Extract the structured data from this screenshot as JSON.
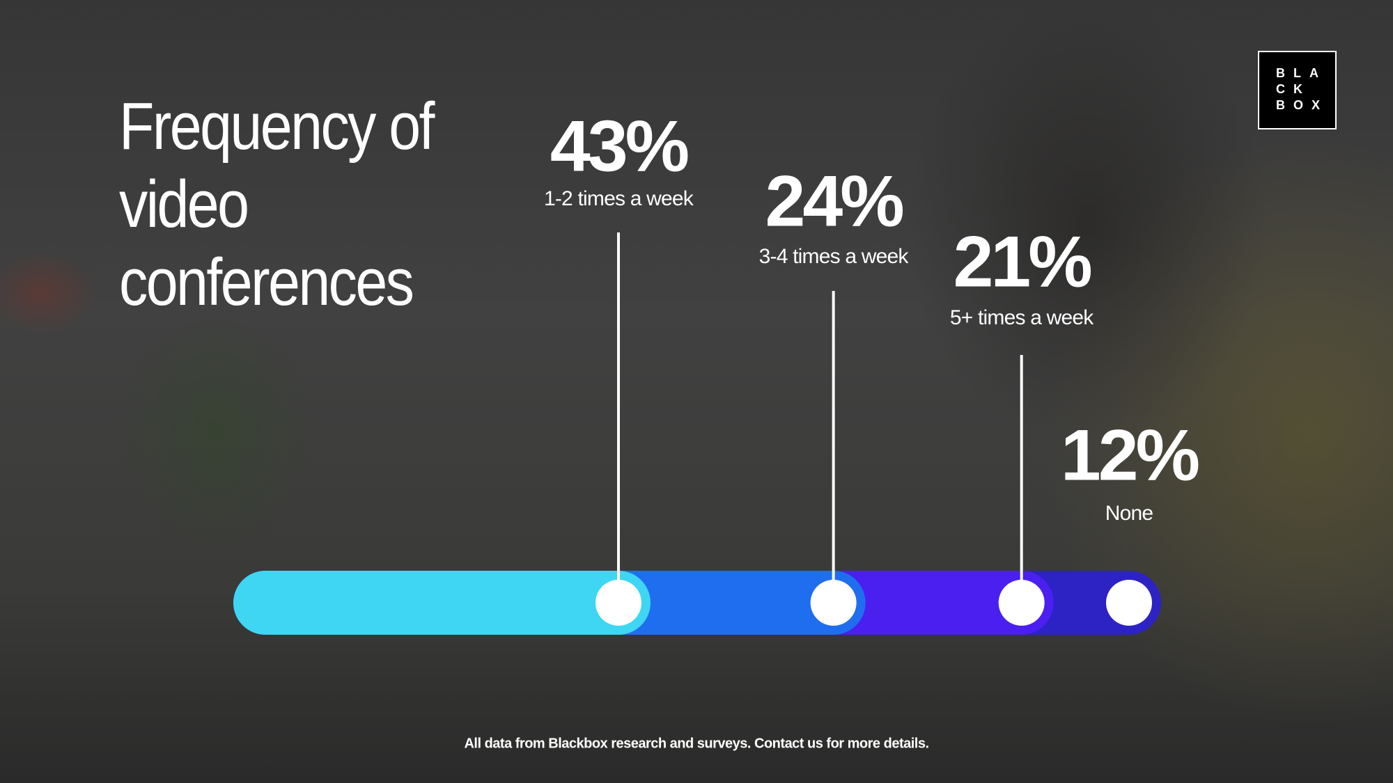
{
  "chart_data": {
    "type": "stacked-bar",
    "title": "Frequency of video conferences",
    "categories": [
      "1-2 times a week",
      "3-4 times a week",
      "5+ times a week",
      "None"
    ],
    "values": [
      43,
      24,
      21,
      12
    ],
    "value_labels": [
      "43%",
      "24%",
      "21%",
      "12%"
    ],
    "colors": [
      "#3fd6f3",
      "#1f6ef0",
      "#4a1ff0",
      "#2d22c4"
    ],
    "footnote": "All data from Blackbox research and surveys. Contact us for more details.",
    "logo": [
      "BLA",
      "CK",
      "BOX"
    ]
  }
}
